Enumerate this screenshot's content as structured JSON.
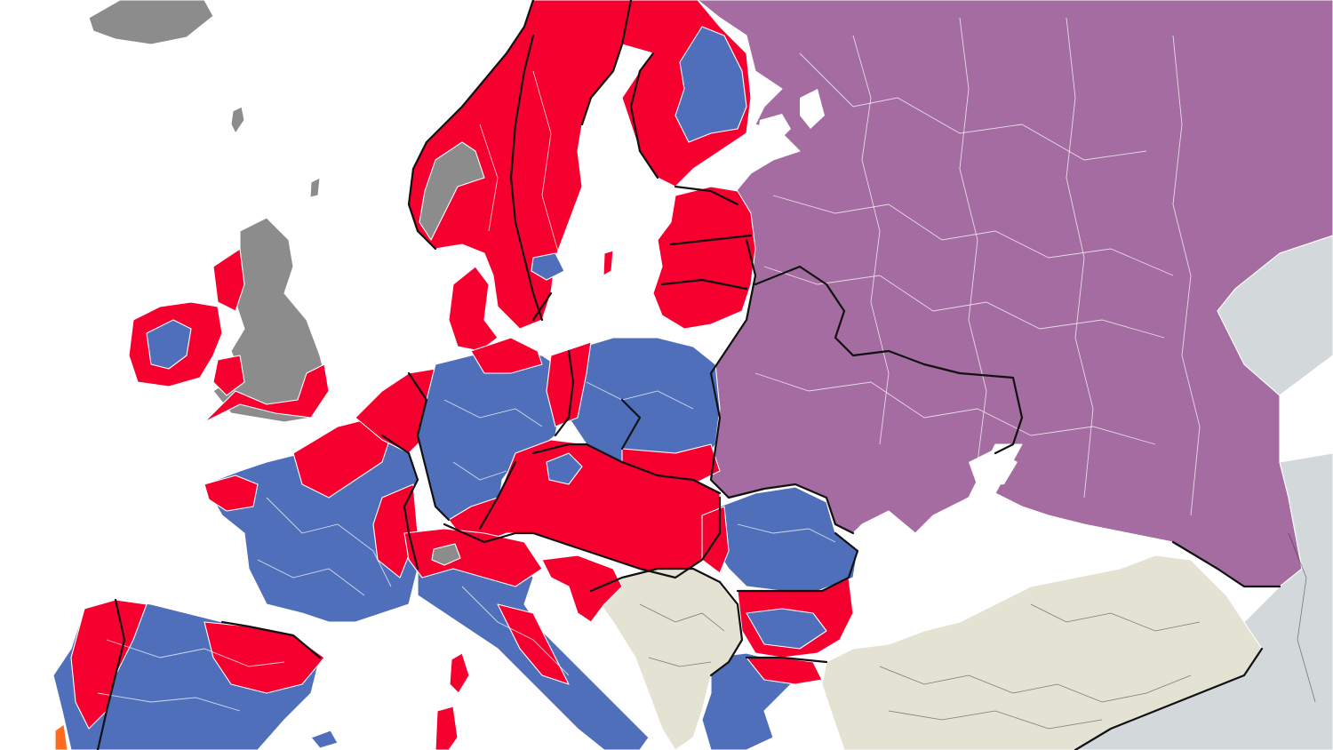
{
  "map": {
    "colors": {
      "background": "#ffffff",
      "red": "#f5002f",
      "blue": "#4f6fbb",
      "purple": "#a46ca0",
      "gray": "#8c8c8c",
      "beige": "#e3e2d3",
      "lightgray": "#d3d9da",
      "orange": "#ff6a1f"
    },
    "legend_colors_meaning": {
      "red": "region-category-red",
      "blue": "region-category-blue",
      "purple": "region-category-purple",
      "gray": "no-data-gray",
      "beige": "region-category-beige",
      "lightgray": "outside-area"
    }
  }
}
